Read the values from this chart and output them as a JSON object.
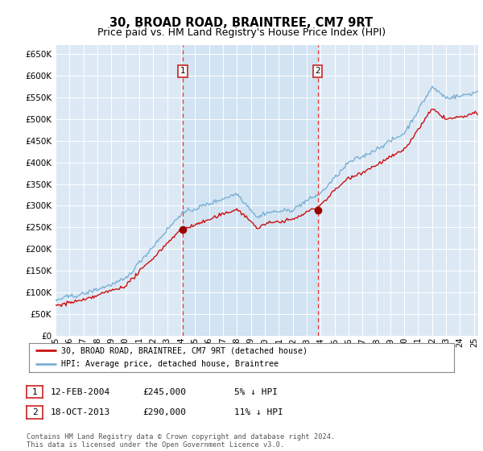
{
  "title": "30, BROAD ROAD, BRAINTREE, CM7 9RT",
  "subtitle": "Price paid vs. HM Land Registry's House Price Index (HPI)",
  "ylim": [
    0,
    670000
  ],
  "yticks": [
    0,
    50000,
    100000,
    150000,
    200000,
    250000,
    300000,
    350000,
    400000,
    450000,
    500000,
    550000,
    600000,
    650000
  ],
  "background_color": "#ffffff",
  "plot_bg_color": "#dce9f5",
  "shade_color": "#cce0f0",
  "grid_color": "#c8d8e8",
  "sale1_date_x": 2004.12,
  "sale1_price": 245000,
  "sale2_date_x": 2013.79,
  "sale2_price": 290000,
  "vline_color": "#ee3333",
  "sale_dot_color": "#990000",
  "hpi_color": "#7ab0d4",
  "price_color": "#cc1111",
  "legend_house_label": "30, BROAD ROAD, BRAINTREE, CM7 9RT (detached house)",
  "legend_hpi_label": "HPI: Average price, detached house, Braintree",
  "footer": "Contains HM Land Registry data © Crown copyright and database right 2024.\nThis data is licensed under the Open Government Licence v3.0.",
  "title_fontsize": 10.5,
  "subtitle_fontsize": 9,
  "tick_fontsize": 7.5,
  "xlim_start": 1995,
  "xlim_end": 2025.3
}
